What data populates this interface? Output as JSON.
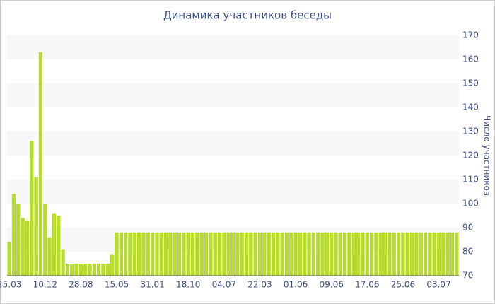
{
  "chart_data": {
    "type": "bar",
    "title": "Динамика участников беседы",
    "y_axis_label": "Число участников",
    "categories": [
      "25.03",
      null,
      null,
      null,
      null,
      null,
      null,
      null,
      "10.12",
      null,
      null,
      null,
      null,
      null,
      null,
      null,
      "28.08",
      null,
      null,
      null,
      null,
      null,
      null,
      null,
      "15.05",
      null,
      null,
      null,
      null,
      null,
      null,
      null,
      "31.01",
      null,
      null,
      null,
      null,
      null,
      null,
      null,
      "18.10",
      null,
      null,
      null,
      null,
      null,
      null,
      null,
      "04.07",
      null,
      null,
      null,
      null,
      null,
      null,
      null,
      "22.03",
      null,
      null,
      null,
      null,
      null,
      null,
      null,
      "01.06",
      null,
      null,
      null,
      null,
      null,
      null,
      null,
      "09.06",
      null,
      null,
      null,
      null,
      null,
      null,
      null,
      "17.06",
      null,
      null,
      null,
      null,
      null,
      null,
      null,
      "25.06",
      null,
      null,
      null,
      null,
      null,
      null,
      null,
      "03.07",
      null,
      null,
      null,
      null
    ],
    "values": [
      84,
      104,
      100,
      94,
      93,
      126,
      111,
      163,
      100,
      86,
      96,
      95,
      81,
      75,
      75,
      75,
      75,
      75,
      75,
      75,
      75,
      75,
      75,
      79,
      88,
      88,
      88,
      88,
      88,
      88,
      88,
      88,
      88,
      88,
      88,
      88,
      88,
      88,
      88,
      88,
      88,
      88,
      88,
      88,
      88,
      88,
      88,
      88,
      88,
      88,
      88,
      88,
      88,
      88,
      88,
      88,
      88,
      88,
      88,
      88,
      88,
      88,
      88,
      88,
      88,
      88,
      88,
      88,
      88,
      88,
      88,
      88,
      88,
      88,
      88,
      88,
      88,
      88,
      88,
      88,
      88,
      88,
      88,
      88,
      88,
      88,
      88,
      88,
      88,
      88,
      88,
      88,
      88,
      88,
      88,
      88,
      88,
      88,
      88,
      88,
      88
    ],
    "color": "#b8dc2c",
    "ylim": [
      70,
      170
    ],
    "yticks": [
      70,
      80,
      90,
      100,
      110,
      120,
      130,
      140,
      150,
      160,
      170
    ],
    "y_axis_side": "right",
    "band_fill": "#f7f7f7"
  }
}
